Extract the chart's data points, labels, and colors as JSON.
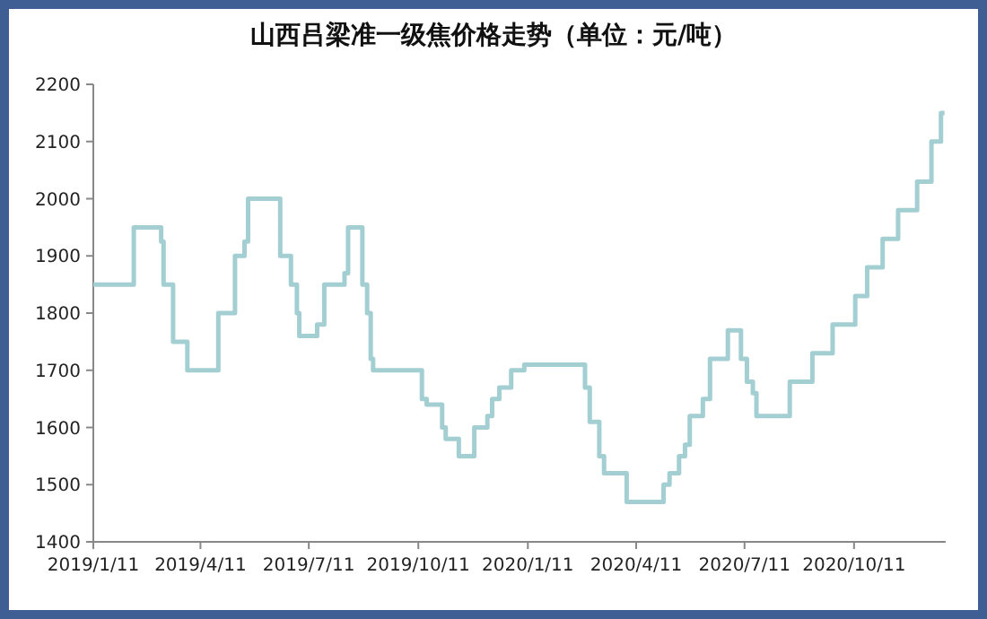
{
  "chart_data": {
    "type": "step",
    "title": "山西吕梁准一级焦价格走势（单位：元/吨）",
    "x": [
      "2019-01-11",
      "2019-02-14",
      "2019-03-09",
      "2019-03-11",
      "2019-03-19",
      "2019-03-31",
      "2019-04-26",
      "2019-05-10",
      "2019-05-18",
      "2019-05-21",
      "2019-06-17",
      "2019-06-26",
      "2019-07-01",
      "2019-07-03",
      "2019-07-18",
      "2019-07-24",
      "2019-08-10",
      "2019-08-13",
      "2019-08-25",
      "2019-08-29",
      "2019-09-01",
      "2019-09-03",
      "2019-10-14",
      "2019-10-18",
      "2019-10-31",
      "2019-11-03",
      "2019-11-14",
      "2019-11-27",
      "2019-12-08",
      "2019-12-12",
      "2019-12-18",
      "2019-12-28",
      "2020-01-08",
      "2020-02-28",
      "2020-03-03",
      "2020-03-11",
      "2020-03-15",
      "2020-04-03",
      "2020-05-04",
      "2020-05-09",
      "2020-05-17",
      "2020-05-22",
      "2020-05-26",
      "2020-06-06",
      "2020-06-12",
      "2020-06-27",
      "2020-07-08",
      "2020-07-13",
      "2020-07-18",
      "2020-07-21",
      "2020-08-18",
      "2020-09-06",
      "2020-09-23",
      "2020-10-12",
      "2020-10-22",
      "2020-11-04",
      "2020-11-17",
      "2020-12-03",
      "2020-12-15",
      "2020-12-23",
      "2020-12-26"
    ],
    "series": [
      {
        "color": "#a3cfd3",
        "values": [
          1850,
          1950,
          1925,
          1850,
          1750,
          1700,
          1800,
          1900,
          1925,
          2000,
          1900,
          1850,
          1800,
          1760,
          1780,
          1850,
          1870,
          1950,
          1850,
          1800,
          1720,
          1700,
          1650,
          1640,
          1600,
          1580,
          1550,
          1600,
          1620,
          1650,
          1670,
          1700,
          1710,
          1670,
          1610,
          1550,
          1520,
          1470,
          1500,
          1520,
          1550,
          1570,
          1620,
          1650,
          1720,
          1770,
          1720,
          1680,
          1660,
          1620,
          1680,
          1730,
          1780,
          1830,
          1880,
          1930,
          1980,
          2030,
          2100,
          2150,
          2150
        ]
      }
    ],
    "xlim": [
      "2019-01-11",
      "2020-12-27"
    ],
    "xticks": [
      {
        "value": "2019-01-11",
        "label": "2019/1/11"
      },
      {
        "value": "2019-04-11",
        "label": "2019/4/11"
      },
      {
        "value": "2019-07-11",
        "label": "2019/7/11"
      },
      {
        "value": "2019-10-11",
        "label": "2019/10/11"
      },
      {
        "value": "2020-01-11",
        "label": "2020/1/11"
      },
      {
        "value": "2020-04-11",
        "label": "2020/4/11"
      },
      {
        "value": "2020-07-11",
        "label": "2020/7/11"
      },
      {
        "value": "2020-10-11",
        "label": "2020/10/11"
      }
    ],
    "ylim": [
      1400,
      2200
    ],
    "yticks": [
      1400,
      1500,
      1600,
      1700,
      1800,
      1900,
      2000,
      2100,
      2200
    ],
    "marker": "none",
    "line_style": "solid"
  }
}
